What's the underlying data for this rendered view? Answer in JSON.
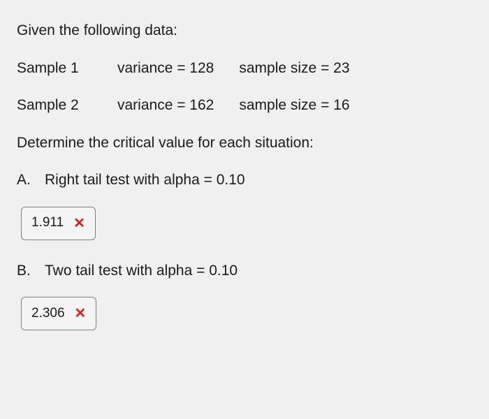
{
  "intro": "Given the following data:",
  "sample1": {
    "label": "Sample 1",
    "variance": "variance = 128",
    "size": "sample size  = 23"
  },
  "sample2": {
    "label": "Sample 2",
    "variance": "variance = 162",
    "size": "sample size = 16"
  },
  "instruction": "Determine the critical value for each situation:",
  "questionA": {
    "letter": "A.",
    "text": "Right tail test with alpha = 0.10"
  },
  "answerA": {
    "value": "1.911",
    "mark_color": "#d62020"
  },
  "questionB": {
    "letter": "B.",
    "text": "Two tail test with alpha = 0.10"
  },
  "answerB": {
    "value": "2.306",
    "mark_color": "#d62020"
  },
  "colors": {
    "background": "#f0f0f0",
    "text": "#1a1a1a",
    "border": "#808080",
    "box_bg": "#f4f4f4"
  },
  "fontsize": {
    "body": 21,
    "answer": 19
  }
}
